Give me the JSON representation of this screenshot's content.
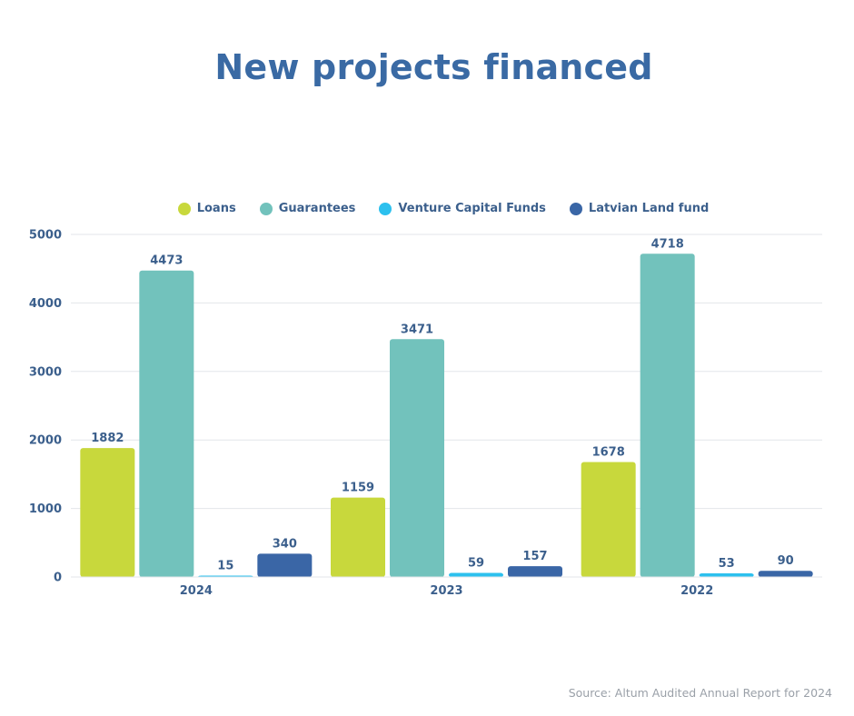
{
  "page": {
    "title": "New projects financed",
    "source": "Source: Altum Audited Annual Report for 2024"
  },
  "chart_data": {
    "type": "bar",
    "title": "New projects financed",
    "categories": [
      "2024",
      "2023",
      "2022"
    ],
    "series": [
      {
        "name": "Loans",
        "color": "#c8d83c",
        "values": [
          1882,
          1159,
          1678
        ]
      },
      {
        "name": "Guarantees",
        "color": "#72c2bc",
        "values": [
          4473,
          3471,
          4718
        ]
      },
      {
        "name": "Venture Capital Funds",
        "color": "#2cc0ee",
        "values": [
          15,
          59,
          53
        ]
      },
      {
        "name": "Latvian Land fund",
        "color": "#3a66a6",
        "values": [
          340,
          157,
          90
        ]
      }
    ],
    "ylim": [
      0,
      5000
    ],
    "yticks": [
      0,
      1000,
      2000,
      3000,
      4000,
      5000
    ],
    "grid": true,
    "legend_position": "top-center",
    "data_labels": true,
    "xlabel": "",
    "ylabel": ""
  },
  "colors": {
    "title": "#3a6aa4",
    "axis_text": "#3b5f8c",
    "gridline": "#e3e6ea"
  }
}
